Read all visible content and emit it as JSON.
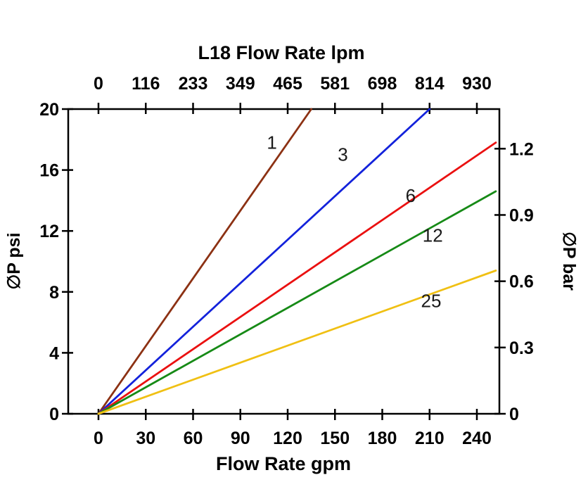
{
  "chart_data": {
    "type": "line",
    "title": "L18 Flow Rate lpm",
    "xlabel": "Flow Rate gpm",
    "ylabel_left": "∅P psi",
    "ylabel_right": "∅P bar",
    "xlim": [
      0,
      240
    ],
    "ylim": [
      0,
      20
    ],
    "grid": false,
    "x_axis_bottom": {
      "unit": "gpm",
      "ticks": [
        0,
        30,
        60,
        90,
        120,
        150,
        180,
        210,
        240
      ]
    },
    "x_axis_top": {
      "unit": "lpm",
      "tick_labels": [
        "0",
        "116",
        "233",
        "349",
        "465",
        "581",
        "698",
        "814",
        "930"
      ],
      "tick_positions_gpm": [
        0,
        30,
        60,
        90,
        120,
        150,
        180,
        210,
        240
      ]
    },
    "y_axis_left": {
      "unit": "psi",
      "ticks": [
        0,
        4,
        8,
        12,
        16,
        20
      ]
    },
    "y_axis_right": {
      "unit": "bar",
      "ticks": [
        0,
        0.3,
        0.6,
        0.9,
        1.2
      ],
      "psi_per_bar": 14.5
    },
    "series": [
      {
        "name": "1",
        "color": "#8C3113",
        "points": [
          [
            0,
            0
          ],
          [
            135,
            20
          ]
        ],
        "label_pos": [
          110,
          17.4
        ]
      },
      {
        "name": "3",
        "color": "#1322DB",
        "points": [
          [
            0,
            0
          ],
          [
            210,
            20
          ]
        ],
        "label_pos": [
          155,
          16.6
        ]
      },
      {
        "name": "6",
        "color": "#EA1010",
        "points": [
          [
            0,
            0
          ],
          [
            252,
            17.8
          ]
        ],
        "label_pos": [
          198,
          13.9
        ]
      },
      {
        "name": "12",
        "color": "#168A16",
        "points": [
          [
            0,
            0
          ],
          [
            252,
            14.6
          ]
        ],
        "label_pos": [
          212,
          11.3
        ]
      },
      {
        "name": "25",
        "color": "#F0C013",
        "points": [
          [
            0,
            0
          ],
          [
            252,
            9.4
          ]
        ],
        "label_pos": [
          211,
          7.0
        ]
      }
    ],
    "colors": {
      "axis": "#000000",
      "background": "#ffffff"
    }
  }
}
